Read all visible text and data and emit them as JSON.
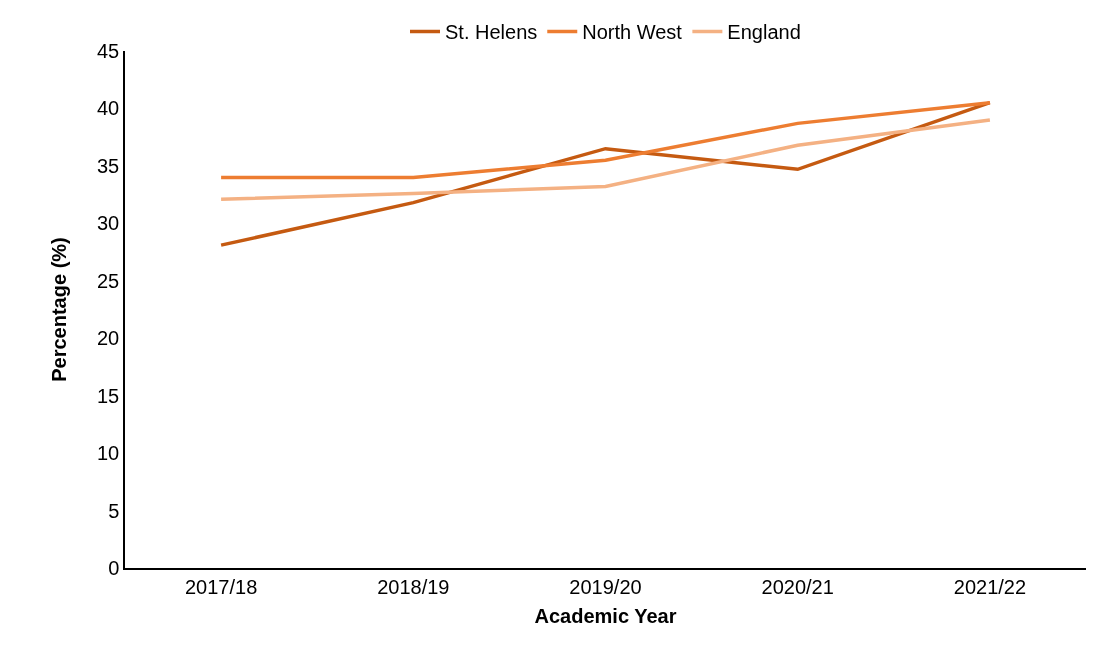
{
  "chart_data": {
    "type": "line",
    "xlabel": "Academic Year",
    "ylabel": "Percentage (%)",
    "categories": [
      "2017/18",
      "2018/19",
      "2019/20",
      "2020/21",
      "2021/22"
    ],
    "series": [
      {
        "name": "St. Helens",
        "color": "#c55a11",
        "values": [
          28.1,
          31.8,
          36.5,
          34.7,
          40.5
        ]
      },
      {
        "name": "North West",
        "color": "#ed7d31",
        "values": [
          34.0,
          34.0,
          35.5,
          38.7,
          40.5
        ]
      },
      {
        "name": "England",
        "color": "#f4b183",
        "values": [
          32.1,
          32.6,
          33.2,
          36.8,
          39.0
        ]
      }
    ],
    "ylim": [
      0,
      45
    ],
    "yticks": [
      0,
      5,
      10,
      15,
      20,
      25,
      30,
      35,
      40,
      45
    ],
    "grid": false,
    "legend": "top",
    "marker": "none",
    "line_style": "solid"
  }
}
